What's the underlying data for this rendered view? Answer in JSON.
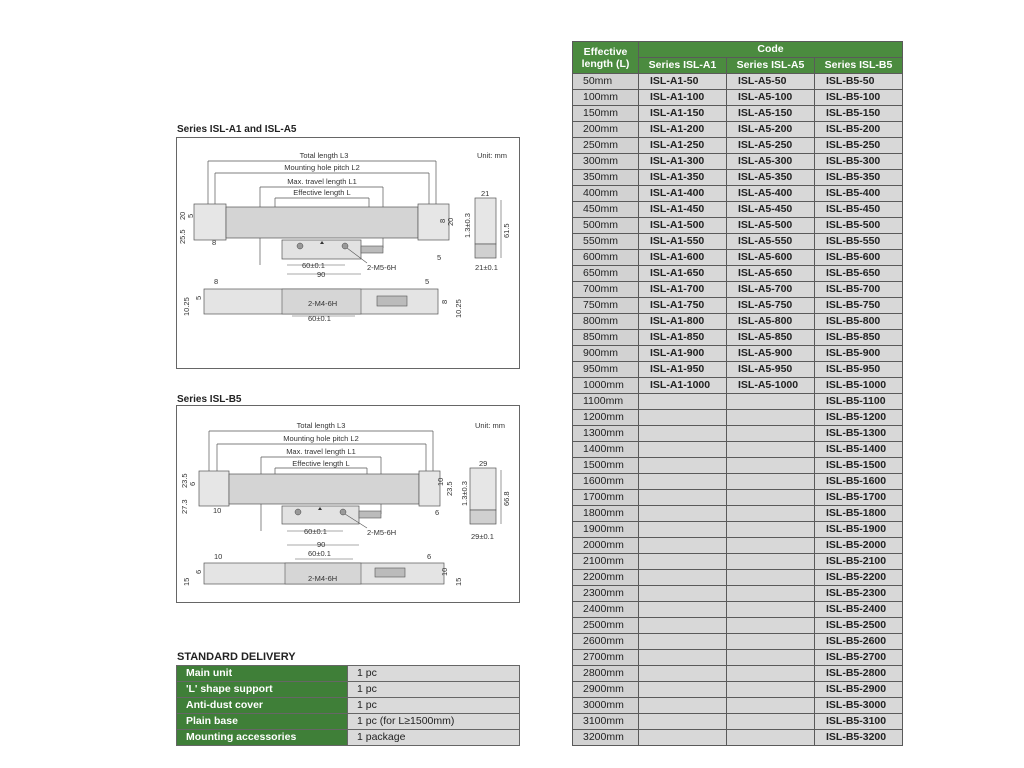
{
  "diagram_a": {
    "title": "Series ISL-A1 and ISL-A5",
    "unit": "Unit: mm",
    "total_length": "Total length L3",
    "mounting_pitch": "Mounting hole pitch L2",
    "max_travel": "Max. travel length L1",
    "effective": "Effective length L",
    "dims": {
      "d20a": "20",
      "d5a": "5",
      "d25_5": "25.5",
      "d8a": "8",
      "d8b": "8",
      "d20b": "20",
      "d5b": "5",
      "d60a": "60±0.1",
      "d90": "90",
      "m5": "2-M5-6H",
      "d21": "21",
      "d1_3": "1.3±0.3",
      "d61_5": "61.5",
      "d21t": "21±0.1",
      "d8c": "8",
      "d5c": "5",
      "d10_25a": "10.25",
      "d5d": "5",
      "m4": "2-M4-6H",
      "d60b": "60±0.1",
      "d8d": "8",
      "d10_25b": "10.25"
    }
  },
  "diagram_b": {
    "title": "Series ISL-B5",
    "unit": "Unit: mm",
    "total_length": "Total length L3",
    "mounting_pitch": "Mounting hole pitch L2",
    "max_travel": "Max. travel length L1",
    "effective": "Effective length L",
    "dims": {
      "d23_5a": "23.5",
      "d6a": "6",
      "d27_3": "27.3",
      "d10a": "10",
      "d10b": "10",
      "d23_5b": "23.5",
      "d6b": "6",
      "d60a": "60±0.1",
      "d90": "90",
      "m5": "2-M5-6H",
      "d29": "29",
      "d1_3": "1.3±0.3",
      "d66_8": "66.8",
      "d29t": "29±0.1",
      "d10c": "10",
      "d6c": "6",
      "d15a": "15",
      "d60b": "60±0.1",
      "m4": "2-M4-6H",
      "d6d": "6",
      "d10d": "10",
      "d15b": "15"
    }
  },
  "delivery": {
    "title": "STANDARD DELIVERY",
    "rows": [
      {
        "item": "Main unit",
        "qty": "1 pc"
      },
      {
        "item": "'L' shape support",
        "qty": "1 pc"
      },
      {
        "item": "Anti-dust cover",
        "qty": "1 pc"
      },
      {
        "item": "Plain base",
        "qty": "1 pc (for L≥1500mm)"
      },
      {
        "item": "Mounting accessories",
        "qty": "1 package"
      }
    ]
  },
  "code_table": {
    "header_length": "Effective length (L)",
    "header_code": "Code",
    "series": [
      "Series ISL-A1",
      "Series ISL-A5",
      "Series ISL-B5"
    ],
    "rows": [
      [
        "50mm",
        "ISL-A1-50",
        "ISL-A5-50",
        "ISL-B5-50"
      ],
      [
        "100mm",
        "ISL-A1-100",
        "ISL-A5-100",
        "ISL-B5-100"
      ],
      [
        "150mm",
        "ISL-A1-150",
        "ISL-A5-150",
        "ISL-B5-150"
      ],
      [
        "200mm",
        "ISL-A1-200",
        "ISL-A5-200",
        "ISL-B5-200"
      ],
      [
        "250mm",
        "ISL-A1-250",
        "ISL-A5-250",
        "ISL-B5-250"
      ],
      [
        "300mm",
        "ISL-A1-300",
        "ISL-A5-300",
        "ISL-B5-300"
      ],
      [
        "350mm",
        "ISL-A1-350",
        "ISL-A5-350",
        "ISL-B5-350"
      ],
      [
        "400mm",
        "ISL-A1-400",
        "ISL-A5-400",
        "ISL-B5-400"
      ],
      [
        "450mm",
        "ISL-A1-450",
        "ISL-A5-450",
        "ISL-B5-450"
      ],
      [
        "500mm",
        "ISL-A1-500",
        "ISL-A5-500",
        "ISL-B5-500"
      ],
      [
        "550mm",
        "ISL-A1-550",
        "ISL-A5-550",
        "ISL-B5-550"
      ],
      [
        "600mm",
        "ISL-A1-600",
        "ISL-A5-600",
        "ISL-B5-600"
      ],
      [
        "650mm",
        "ISL-A1-650",
        "ISL-A5-650",
        "ISL-B5-650"
      ],
      [
        "700mm",
        "ISL-A1-700",
        "ISL-A5-700",
        "ISL-B5-700"
      ],
      [
        "750mm",
        "ISL-A1-750",
        "ISL-A5-750",
        "ISL-B5-750"
      ],
      [
        "800mm",
        "ISL-A1-800",
        "ISL-A5-800",
        "ISL-B5-800"
      ],
      [
        "850mm",
        "ISL-A1-850",
        "ISL-A5-850",
        "ISL-B5-850"
      ],
      [
        "900mm",
        "ISL-A1-900",
        "ISL-A5-900",
        "ISL-B5-900"
      ],
      [
        "950mm",
        "ISL-A1-950",
        "ISL-A5-950",
        "ISL-B5-950"
      ],
      [
        "1000mm",
        "ISL-A1-1000",
        "ISL-A5-1000",
        "ISL-B5-1000"
      ],
      [
        "1100mm",
        "",
        "",
        "ISL-B5-1100"
      ],
      [
        "1200mm",
        "",
        "",
        "ISL-B5-1200"
      ],
      [
        "1300mm",
        "",
        "",
        "ISL-B5-1300"
      ],
      [
        "1400mm",
        "",
        "",
        "ISL-B5-1400"
      ],
      [
        "1500mm",
        "",
        "",
        "ISL-B5-1500"
      ],
      [
        "1600mm",
        "",
        "",
        "ISL-B5-1600"
      ],
      [
        "1700mm",
        "",
        "",
        "ISL-B5-1700"
      ],
      [
        "1800mm",
        "",
        "",
        "ISL-B5-1800"
      ],
      [
        "1900mm",
        "",
        "",
        "ISL-B5-1900"
      ],
      [
        "2000mm",
        "",
        "",
        "ISL-B5-2000"
      ],
      [
        "2100mm",
        "",
        "",
        "ISL-B5-2100"
      ],
      [
        "2200mm",
        "",
        "",
        "ISL-B5-2200"
      ],
      [
        "2300mm",
        "",
        "",
        "ISL-B5-2300"
      ],
      [
        "2400mm",
        "",
        "",
        "ISL-B5-2400"
      ],
      [
        "2500mm",
        "",
        "",
        "ISL-B5-2500"
      ],
      [
        "2600mm",
        "",
        "",
        "ISL-B5-2600"
      ],
      [
        "2700mm",
        "",
        "",
        "ISL-B5-2700"
      ],
      [
        "2800mm",
        "",
        "",
        "ISL-B5-2800"
      ],
      [
        "2900mm",
        "",
        "",
        "ISL-B5-2900"
      ],
      [
        "3000mm",
        "",
        "",
        "ISL-B5-3000"
      ],
      [
        "3100mm",
        "",
        "",
        "ISL-B5-3100"
      ],
      [
        "3200mm",
        "",
        "",
        "ISL-B5-3200"
      ]
    ]
  },
  "colors": {
    "header_green": "#4b8b3f",
    "label_green": "#3f7f38",
    "cell_grey": "#d8d8d8"
  }
}
